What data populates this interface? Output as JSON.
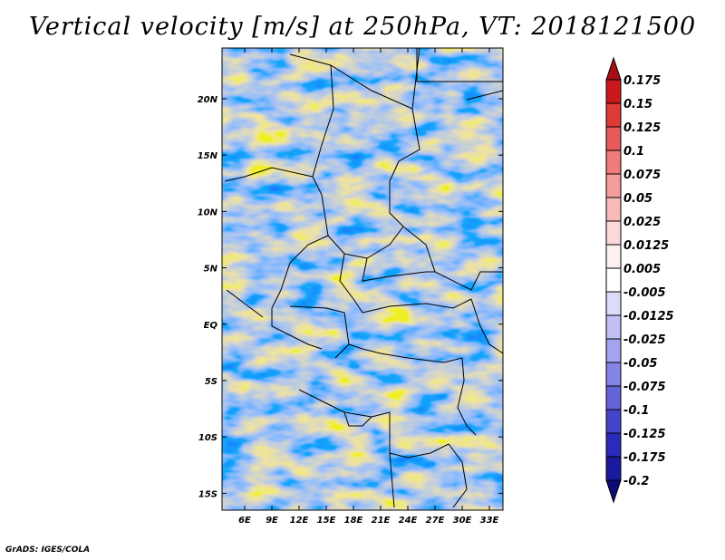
{
  "title": "Vertical velocity [m/s] at 250hPa, VT: 2018121500",
  "credit": "GrADS: IGES/COLA",
  "chart_data": {
    "type": "heatmap",
    "title": "Vertical velocity [m/s] at 250hPa, VT: 2018121500",
    "variable": "Vertical velocity",
    "units": "m/s",
    "level": "250hPa",
    "valid_time": "2018121500",
    "xlim": [
      3.5,
      34.5
    ],
    "ylim": [
      -16.5,
      24.5
    ],
    "x_ticks": [
      {
        "value": 6,
        "label": "6E"
      },
      {
        "value": 9,
        "label": "9E"
      },
      {
        "value": 12,
        "label": "12E"
      },
      {
        "value": 15,
        "label": "15E"
      },
      {
        "value": 18,
        "label": "18E"
      },
      {
        "value": 21,
        "label": "21E"
      },
      {
        "value": 24,
        "label": "24E"
      },
      {
        "value": 27,
        "label": "27E"
      },
      {
        "value": 30,
        "label": "30E"
      },
      {
        "value": 33,
        "label": "33E"
      }
    ],
    "y_ticks": [
      {
        "value": 20,
        "label": "20N"
      },
      {
        "value": 15,
        "label": "15N"
      },
      {
        "value": 10,
        "label": "10N"
      },
      {
        "value": 5,
        "label": "5N"
      },
      {
        "value": 0,
        "label": "EQ"
      },
      {
        "value": -5,
        "label": "5S"
      },
      {
        "value": -10,
        "label": "10S"
      },
      {
        "value": -15,
        "label": "15S"
      }
    ],
    "colorbar": {
      "levels": [
        "0.175",
        "0.15",
        "0.125",
        "0.1",
        "0.075",
        "0.05",
        "0.025",
        "0.0125",
        "0.005",
        "-0.005",
        "-0.0125",
        "-0.025",
        "-0.05",
        "-0.075",
        "-0.1",
        "-0.125",
        "-0.175",
        "-0.2"
      ],
      "colors": [
        "#a50f15",
        "#cb181d",
        "#de3a38",
        "#e8595a",
        "#ef7b7b",
        "#f59c9c",
        "#f9baba",
        "#fcd8d8",
        "#fff0f0",
        "#ffffff",
        "#dcdcfa",
        "#c0c0f5",
        "#a3a3ef",
        "#8484e6",
        "#6464da",
        "#4545cc",
        "#2a2abb",
        "#1a1a9e",
        "#0c0c78"
      ]
    }
  }
}
